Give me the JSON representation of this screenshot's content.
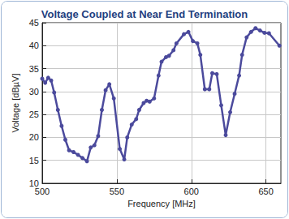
{
  "chart_data": {
    "type": "line",
    "title": "Voltage Coupled at Near End Termination",
    "x_label": "Frequency [MHz]",
    "y_label": "Voltage [dBµV]",
    "x": [
      500,
      502,
      504,
      506,
      508,
      510.5,
      513,
      515.5,
      518,
      521,
      524,
      527,
      530,
      532.5,
      535,
      537.5,
      540,
      542.5,
      545,
      548,
      552,
      555,
      557,
      560,
      563,
      565,
      568,
      570,
      572,
      575,
      578,
      580,
      583,
      585,
      588,
      590,
      595,
      598,
      601,
      604,
      606,
      609,
      612,
      614,
      617,
      620,
      623,
      626,
      629,
      632,
      634,
      637,
      640,
      643,
      646,
      649,
      652,
      659
    ],
    "values": [
      32.8,
      31.9,
      33.0,
      32.4,
      29.8,
      26.0,
      22.5,
      19.5,
      17.2,
      16.8,
      16.2,
      15.5,
      14.8,
      17.8,
      18.3,
      20.3,
      26.0,
      30.3,
      31.6,
      28.5,
      17.5,
      15.2,
      20.0,
      22.8,
      24.0,
      26.0,
      27.5,
      28.0,
      27.8,
      28.5,
      33.5,
      36.5,
      37.5,
      37.8,
      39.0,
      40.5,
      42.5,
      43.0,
      41.0,
      40.5,
      38.0,
      30.5,
      30.5,
      34.0,
      33.8,
      27.0,
      20.5,
      25.5,
      29.5,
      33.5,
      38.0,
      41.8,
      43.0,
      43.8,
      43.3,
      42.8,
      42.7,
      40.0
    ],
    "color": "#4b4a9c",
    "marker": "circle",
    "xlim": [
      500,
      660
    ],
    "xticks": [
      500,
      550,
      600,
      650
    ],
    "ylim": [
      10,
      45
    ],
    "yticks": [
      10,
      15,
      20,
      25,
      30,
      35,
      40,
      45
    ],
    "grid": true
  }
}
